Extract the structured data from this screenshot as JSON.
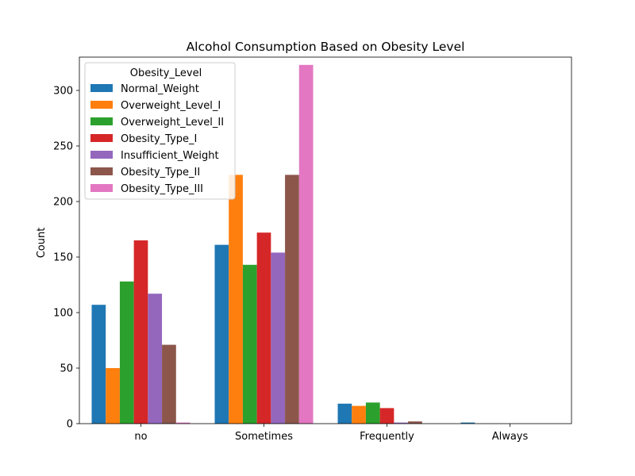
{
  "chart_data": {
    "type": "bar",
    "title": "Alcohol Consumption Based on Obesity Level",
    "xlabel": "",
    "ylabel": "Count",
    "ylim": [
      0,
      330
    ],
    "yticks": [
      0,
      50,
      100,
      150,
      200,
      250,
      300
    ],
    "categories": [
      "no",
      "Sometimes",
      "Frequently",
      "Always"
    ],
    "legend": {
      "title": "Obesity_Level",
      "placement": "upper-left"
    },
    "series": [
      {
        "name": "Normal_Weight",
        "color": "#1f77b4",
        "values": [
          107,
          161,
          18,
          1
        ]
      },
      {
        "name": "Overweight_Level_I",
        "color": "#ff7f0e",
        "values": [
          50,
          224,
          16,
          0
        ]
      },
      {
        "name": "Overweight_Level_II",
        "color": "#2ca02c",
        "values": [
          128,
          143,
          19,
          0
        ]
      },
      {
        "name": "Obesity_Type_I",
        "color": "#d62728",
        "values": [
          165,
          172,
          14,
          0
        ]
      },
      {
        "name": "Insufficient_Weight",
        "color": "#9467bd",
        "values": [
          117,
          154,
          1,
          0
        ]
      },
      {
        "name": "Obesity_Type_II",
        "color": "#8c564b",
        "values": [
          71,
          224,
          2,
          0
        ]
      },
      {
        "name": "Obesity_Type_III",
        "color": "#e377c2",
        "values": [
          1,
          323,
          0,
          0
        ]
      }
    ]
  }
}
